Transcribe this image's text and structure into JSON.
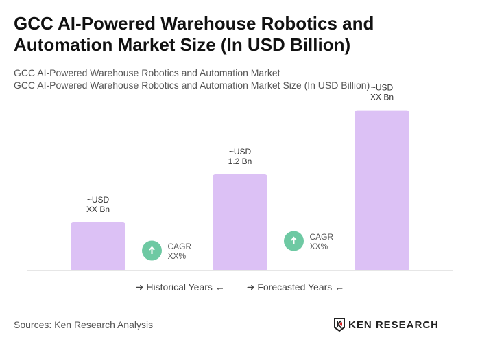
{
  "title": "GCC AI-Powered Warehouse Robotics and Automation Market Size (In USD Billion)",
  "subtitle1": "GCC AI-Powered Warehouse Robotics and Automation Market",
  "subtitle2": "GCC AI-Powered Warehouse Robotics and Automation Market Size (In USD Billion)",
  "chart_data": {
    "type": "bar",
    "categories": [
      "",
      "",
      ""
    ],
    "values": [
      0.6,
      1.2,
      2.0
    ],
    "data_labels": [
      [
        "~USD",
        "XX Bn"
      ],
      [
        "~USD",
        "1.2 Bn"
      ],
      [
        "~USD",
        "XX Bn"
      ]
    ],
    "bar_color": "#dcc1f5",
    "cagr": [
      {
        "label": "CAGR",
        "value": "XX%"
      },
      {
        "label": "CAGR",
        "value": "XX%"
      }
    ],
    "cagr_color": "#6ec9a3",
    "grid": false
  },
  "legend": {
    "historical": "Historical Years",
    "forecasted": "Forecasted Years"
  },
  "sources": "Sources: Ken Research Analysis",
  "logo": "KEN RESEARCH"
}
